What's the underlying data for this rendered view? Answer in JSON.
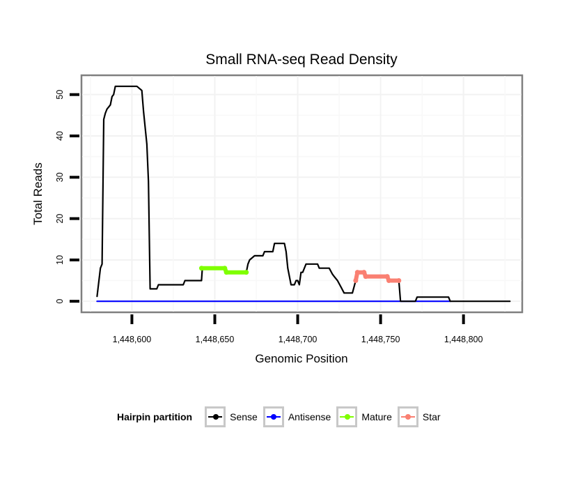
{
  "chart_data": {
    "type": "line",
    "title": "Small RNA-seq Read Density",
    "xlabel": "Genomic Position",
    "ylabel": "Total Reads",
    "xlim": [
      1448570,
      1448835
    ],
    "ylim": [
      -2.5,
      54.5
    ],
    "x_ticks": [
      1448600,
      1448650,
      1448700,
      1448750,
      1448800
    ],
    "x_tick_labels": [
      "1,448,600",
      "1,448,650",
      "1,448,700",
      "1,448,750",
      "1,448,800"
    ],
    "y_ticks": [
      0,
      10,
      20,
      30,
      40,
      50
    ],
    "y_tick_labels": [
      "0",
      "10",
      "20",
      "30",
      "40",
      "50"
    ],
    "grid": true,
    "legend": {
      "title": "Hairpin partition",
      "placement": "bottom",
      "entries": [
        {
          "label": "Sense",
          "color": "#000000"
        },
        {
          "label": "Antisense",
          "color": "#0000ff"
        },
        {
          "label": "Mature",
          "color": "#7fff00"
        },
        {
          "label": "Star",
          "color": "#fa8072"
        }
      ]
    },
    "series": [
      {
        "name": "Sense",
        "color": "#000000",
        "points": [
          [
            1448579,
            1.2
          ],
          [
            1448581,
            8
          ],
          [
            1448582,
            9
          ],
          [
            1448583,
            44
          ],
          [
            1448584,
            45.5
          ],
          [
            1448585,
            46.5
          ],
          [
            1448587,
            47.5
          ],
          [
            1448588,
            49.5
          ],
          [
            1448589,
            50
          ],
          [
            1448590,
            52
          ],
          [
            1448603,
            52
          ],
          [
            1448606,
            51
          ],
          [
            1448607,
            46
          ],
          [
            1448609,
            38
          ],
          [
            1448610,
            29
          ],
          [
            1448611,
            3
          ],
          [
            1448615,
            3
          ],
          [
            1448616,
            4
          ],
          [
            1448631,
            4
          ],
          [
            1448632,
            5
          ],
          [
            1448642,
            5
          ],
          [
            1448642.5,
            8
          ]
        ]
      },
      {
        "name": "Sense",
        "color": "#000000",
        "points": [
          [
            1448669,
            7
          ],
          [
            1448670,
            9
          ],
          [
            1448671,
            10
          ],
          [
            1448674,
            11
          ],
          [
            1448679,
            11
          ],
          [
            1448680,
            12
          ],
          [
            1448685,
            12
          ],
          [
            1448686,
            14
          ],
          [
            1448692,
            14
          ],
          [
            1448693,
            12
          ],
          [
            1448694,
            8
          ],
          [
            1448696,
            4
          ],
          [
            1448698,
            4
          ],
          [
            1448699,
            5
          ],
          [
            1448700,
            5
          ],
          [
            1448701,
            4
          ],
          [
            1448702,
            7
          ],
          [
            1448703,
            7
          ],
          [
            1448705,
            9
          ],
          [
            1448712,
            9
          ],
          [
            1448713,
            8
          ],
          [
            1448719,
            8
          ],
          [
            1448721,
            6.5
          ],
          [
            1448722,
            6
          ],
          [
            1448724,
            5
          ],
          [
            1448726,
            3.5
          ],
          [
            1448728,
            2
          ],
          [
            1448733,
            2
          ],
          [
            1448735,
            5
          ]
        ]
      },
      {
        "name": "Sense",
        "color": "#000000",
        "points": [
          [
            1448761,
            5
          ],
          [
            1448762,
            0
          ],
          [
            1448771,
            0
          ],
          [
            1448772,
            1
          ],
          [
            1448791,
            1
          ],
          [
            1448792,
            0
          ],
          [
            1448828,
            0
          ]
        ]
      },
      {
        "name": "Antisense",
        "color": "#0000ff",
        "points": [
          [
            1448579,
            0
          ],
          [
            1448792,
            0
          ]
        ]
      },
      {
        "name": "Mature",
        "color": "#7fff00",
        "points": [
          [
            1448642,
            8
          ],
          [
            1448656,
            8
          ],
          [
            1448657,
            7
          ],
          [
            1448669,
            7
          ]
        ]
      },
      {
        "name": "Star",
        "color": "#fa8072",
        "points": [
          [
            1448735,
            5
          ],
          [
            1448736,
            7
          ],
          [
            1448740,
            7
          ],
          [
            1448741,
            6
          ],
          [
            1448754,
            6
          ],
          [
            1448755,
            5
          ],
          [
            1448761,
            5
          ]
        ]
      }
    ]
  }
}
